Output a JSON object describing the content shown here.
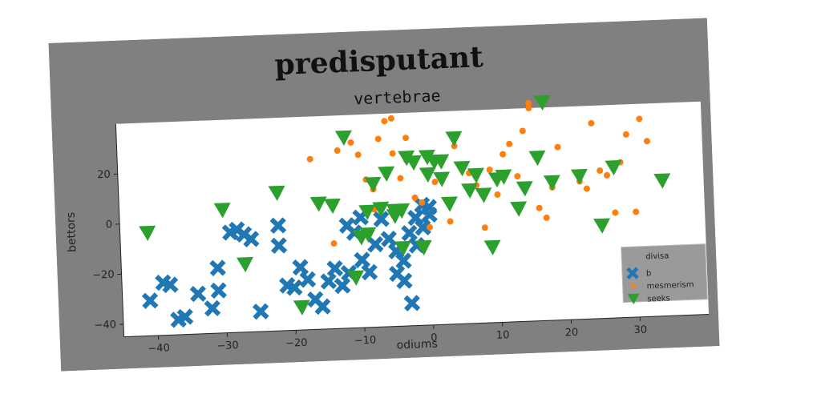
{
  "chart_data": {
    "type": "scatter",
    "title": "predisputant",
    "subtitle": "vertebrae",
    "xlabel": "odiums",
    "ylabel": "bettors",
    "xlim": [
      -45,
      40
    ],
    "ylim": [
      -45,
      40
    ],
    "xticks": [
      -40,
      -30,
      -20,
      -10,
      0,
      10,
      20,
      30
    ],
    "yticks": [
      -40,
      -20,
      0,
      20
    ],
    "grid": false,
    "legend": {
      "title": "divisa",
      "placement": "lower-right"
    },
    "colors": {
      "figure_bg": "#808080",
      "plot_bg": "#ffffff",
      "legend_bg": "#9a9a9a"
    },
    "series": [
      {
        "name": "b",
        "marker": "x",
        "color": "#1f77b4",
        "points": [
          [
            -41,
            -31
          ],
          [
            -39,
            -24
          ],
          [
            -38,
            -25
          ],
          [
            -37,
            -39
          ],
          [
            -36,
            -38
          ],
          [
            -34,
            -29
          ],
          [
            -32,
            -35
          ],
          [
            -31,
            -28
          ],
          [
            -31,
            -19
          ],
          [
            -29,
            -5
          ],
          [
            -28,
            -4
          ],
          [
            -27,
            -6
          ],
          [
            -26,
            -8
          ],
          [
            -25,
            -37
          ],
          [
            -22,
            -11
          ],
          [
            -22,
            -3
          ],
          [
            -21,
            -27
          ],
          [
            -20,
            -28
          ],
          [
            -19,
            -20
          ],
          [
            -18,
            -25
          ],
          [
            -17,
            -33
          ],
          [
            -16,
            -36
          ],
          [
            -15,
            -26
          ],
          [
            -14,
            -21
          ],
          [
            -13,
            -28
          ],
          [
            -12,
            -23
          ],
          [
            -12,
            -4
          ],
          [
            -11,
            -7
          ],
          [
            -10,
            -1
          ],
          [
            -10,
            -18
          ],
          [
            -9,
            -23
          ],
          [
            -8,
            -12
          ],
          [
            -7,
            -2
          ],
          [
            -6,
            -10
          ],
          [
            -5,
            -15
          ],
          [
            -5,
            -24
          ],
          [
            -4,
            -19
          ],
          [
            -4,
            -27
          ],
          [
            -3,
            -36
          ],
          [
            -2,
            -13
          ],
          [
            -1,
            -6
          ],
          [
            0,
            -1
          ],
          [
            0,
            2
          ],
          [
            -1,
            3
          ],
          [
            -2,
            -2
          ],
          [
            -3,
            -8
          ]
        ]
      },
      {
        "name": "mesmerism",
        "marker": "o",
        "color": "#ff7f0e",
        "points": [
          [
            -17,
            23
          ],
          [
            -14,
            -11
          ],
          [
            -13,
            26
          ],
          [
            -11,
            29
          ],
          [
            -10,
            24
          ],
          [
            -9,
            14
          ],
          [
            -8,
            10
          ],
          [
            -8,
            2
          ],
          [
            -7,
            30
          ],
          [
            -6,
            37
          ],
          [
            -5,
            38
          ],
          [
            -5,
            24
          ],
          [
            -4,
            14
          ],
          [
            -3,
            30
          ],
          [
            -3,
            21
          ],
          [
            -2,
            6
          ],
          [
            -1,
            4
          ],
          [
            0,
            -6
          ],
          [
            1,
            12
          ],
          [
            2,
            14
          ],
          [
            3,
            -4
          ],
          [
            4,
            26
          ],
          [
            6,
            15
          ],
          [
            7,
            10
          ],
          [
            8,
            -7
          ],
          [
            9,
            16
          ],
          [
            10,
            6
          ],
          [
            11,
            22
          ],
          [
            12,
            26
          ],
          [
            13,
            13
          ],
          [
            14,
            31
          ],
          [
            15,
            40
          ],
          [
            15,
            42
          ],
          [
            16,
            0
          ],
          [
            17,
            -4
          ],
          [
            18,
            8
          ],
          [
            19,
            24
          ],
          [
            22,
            10
          ],
          [
            23,
            7
          ],
          [
            24,
            33
          ],
          [
            25,
            14
          ],
          [
            26,
            12
          ],
          [
            27,
            -3
          ],
          [
            28,
            17
          ],
          [
            29,
            28
          ],
          [
            30,
            -3
          ],
          [
            31,
            34
          ],
          [
            32,
            25
          ]
        ]
      },
      {
        "name": "seeks",
        "marker": "v",
        "color": "#2ca02c",
        "points": [
          [
            -41,
            -4
          ],
          [
            -30,
            4
          ],
          [
            -27,
            -18
          ],
          [
            -22,
            10
          ],
          [
            -19,
            -36
          ],
          [
            -16,
            5
          ],
          [
            -14,
            4
          ],
          [
            -12,
            31
          ],
          [
            -11,
            -25
          ],
          [
            -10,
            -9
          ],
          [
            -9,
            1
          ],
          [
            -9,
            -8
          ],
          [
            -8,
            12
          ],
          [
            -7,
            2
          ],
          [
            -6,
            16
          ],
          [
            -5,
            -1
          ],
          [
            -5,
            1
          ],
          [
            -4,
            1
          ],
          [
            -4,
            -14
          ],
          [
            -3,
            22
          ],
          [
            -2,
            20
          ],
          [
            -1,
            -14
          ],
          [
            0,
            22
          ],
          [
            0,
            15
          ],
          [
            1,
            20
          ],
          [
            2,
            13
          ],
          [
            2,
            20
          ],
          [
            3,
            3
          ],
          [
            4,
            29
          ],
          [
            5,
            17
          ],
          [
            6,
            8
          ],
          [
            7,
            14
          ],
          [
            8,
            6
          ],
          [
            9,
            -15
          ],
          [
            10,
            12
          ],
          [
            11,
            13
          ],
          [
            13,
            0
          ],
          [
            14,
            8
          ],
          [
            16,
            20
          ],
          [
            17,
            42
          ],
          [
            18,
            10
          ],
          [
            22,
            12
          ],
          [
            25,
            -8
          ],
          [
            27,
            15
          ],
          [
            34,
            9
          ]
        ]
      }
    ]
  }
}
